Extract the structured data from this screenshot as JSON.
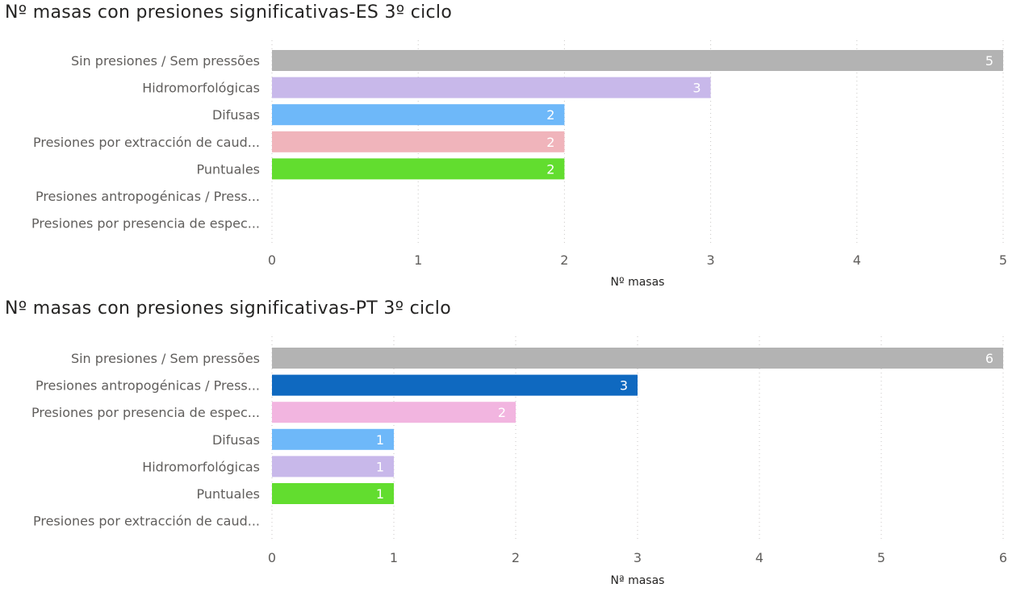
{
  "chart_data": [
    {
      "type": "bar",
      "orientation": "horizontal",
      "title": "Nº masas con presiones significativas-ES 3º ciclo",
      "xlabel": "Nº masas",
      "ylabel": "",
      "xlim": [
        0,
        5
      ],
      "x_ticks": [
        "0",
        "1",
        "2",
        "3",
        "4",
        "5"
      ],
      "grid": true,
      "categories": [
        "Sin presiones / Sem pressões",
        "Hidromorfológicas",
        "Difusas",
        "Presiones por extracción de caud...",
        "Puntuales",
        "Presiones antropogénicas / Press...",
        "Presiones por presencia de espec..."
      ],
      "values": [
        5,
        3,
        2,
        2,
        2,
        null,
        null
      ],
      "data_labels": [
        "5",
        "3",
        "2",
        "2",
        "2",
        "",
        ""
      ],
      "colors": [
        "#b3b3b3",
        "#c8b8ea",
        "#6eb8f9",
        "#f0b4bb",
        "#62dd2f",
        "#0f69c0",
        "#f2b5e0"
      ]
    },
    {
      "type": "bar",
      "orientation": "horizontal",
      "title": "Nº masas con presiones significativas-PT 3º ciclo",
      "xlabel": "Nª masas",
      "ylabel": "",
      "xlim": [
        0,
        6
      ],
      "x_ticks": [
        "0",
        "1",
        "2",
        "3",
        "4",
        "5",
        "6"
      ],
      "grid": true,
      "categories": [
        "Sin presiones / Sem pressões",
        "Presiones antropogénicas / Press...",
        "Presiones por presencia de espec...",
        "Difusas",
        "Hidromorfológicas",
        "Puntuales",
        "Presiones por extracción de caud..."
      ],
      "values": [
        6,
        3,
        2,
        1,
        1,
        1,
        null
      ],
      "data_labels": [
        "6",
        "3",
        "2",
        "1",
        "1",
        "1",
        ""
      ],
      "colors": [
        "#b3b3b3",
        "#0f69c0",
        "#f2b5e0",
        "#6eb8f9",
        "#c8b8ea",
        "#62dd2f",
        "#f0b4bb"
      ]
    }
  ]
}
